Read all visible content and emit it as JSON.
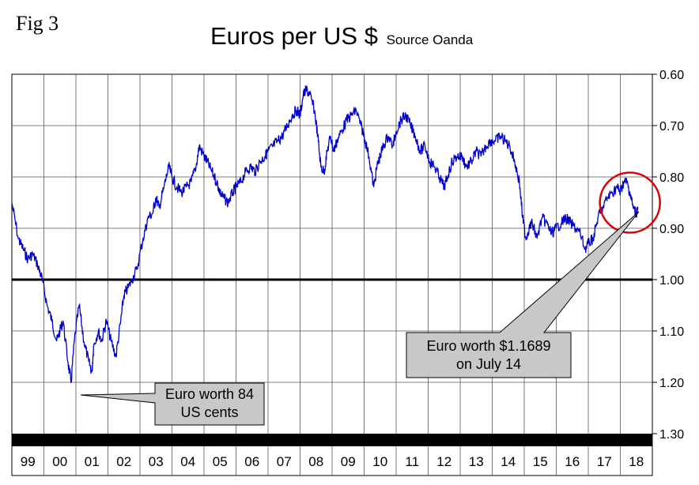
{
  "figure_label": "Fig 3",
  "title": "Euros per US $",
  "source": "Source Oanda",
  "chart_data": {
    "type": "line",
    "title": "Euros per US $",
    "subtitle": "Source Oanda",
    "xlabel": "",
    "ylabel": "",
    "x_categories": [
      "99",
      "00",
      "01",
      "02",
      "03",
      "04",
      "05",
      "06",
      "07",
      "08",
      "09",
      "10",
      "11",
      "12",
      "13",
      "14",
      "15",
      "16",
      "17",
      "18"
    ],
    "y_ticks": [
      "0.60",
      "0.70",
      "0.80",
      "0.90",
      "1.00",
      "1.10",
      "1.20",
      "1.30"
    ],
    "ylim": [
      0.6,
      1.3
    ],
    "y_inverted": true,
    "y_axis_side": "right",
    "reference_line": 1.0,
    "series": [
      {
        "name": "EUR per USD",
        "color": "#0000cc",
        "x": [
          1999.0,
          1999.2,
          1999.35,
          1999.5,
          1999.65,
          1999.8,
          1999.95,
          2000.1,
          2000.25,
          2000.4,
          2000.5,
          2000.6,
          2000.75,
          2000.85,
          2000.95,
          2001.1,
          2001.25,
          2001.4,
          2001.5,
          2001.55,
          2001.7,
          2001.8,
          2001.95,
          2002.1,
          2002.25,
          2002.4,
          2002.5,
          2002.6,
          2002.75,
          2002.9,
          2003.1,
          2003.25,
          2003.4,
          2003.5,
          2003.6,
          2003.75,
          2003.9,
          2004.0,
          2004.15,
          2004.3,
          2004.45,
          2004.6,
          2004.75,
          2004.85,
          2005.0,
          2005.1,
          2005.25,
          2005.4,
          2005.5,
          2005.6,
          2005.75,
          2005.9,
          2006.0,
          2006.15,
          2006.3,
          2006.45,
          2006.6,
          2006.75,
          2006.9,
          2007.0,
          2007.15,
          2007.3,
          2007.45,
          2007.6,
          2007.75,
          2007.9,
          2008.0,
          2008.1,
          2008.2,
          2008.3,
          2008.45,
          2008.55,
          2008.65,
          2008.75,
          2008.85,
          2008.95,
          2009.05,
          2009.15,
          2009.3,
          2009.45,
          2009.6,
          2009.75,
          2009.9,
          2010.0,
          2010.15,
          2010.3,
          2010.4,
          2010.5,
          2010.6,
          2010.75,
          2010.9,
          2011.0,
          2011.15,
          2011.3,
          2011.45,
          2011.6,
          2011.75,
          2011.9,
          2012.05,
          2012.2,
          2012.35,
          2012.5,
          2012.6,
          2012.75,
          2012.9,
          2013.05,
          2013.2,
          2013.35,
          2013.5,
          2013.65,
          2013.8,
          2013.95,
          2014.1,
          2014.25,
          2014.4,
          2014.55,
          2014.7,
          2014.85,
          2014.95,
          2015.05,
          2015.15,
          2015.25,
          2015.4,
          2015.55,
          2015.7,
          2015.85,
          2016.0,
          2016.15,
          2016.3,
          2016.45,
          2016.6,
          2016.75,
          2016.9,
          2017.0,
          2017.15,
          2017.3,
          2017.45,
          2017.6,
          2017.75,
          2017.9,
          2018.0,
          2018.1,
          2018.2,
          2018.3,
          2018.4,
          2018.5,
          2018.55
        ],
        "values": [
          0.85,
          0.92,
          0.94,
          0.96,
          0.95,
          0.97,
          1.0,
          1.05,
          1.08,
          1.12,
          1.1,
          1.08,
          1.16,
          1.2,
          1.12,
          1.05,
          1.12,
          1.16,
          1.18,
          1.13,
          1.1,
          1.12,
          1.08,
          1.12,
          1.15,
          1.08,
          1.03,
          1.02,
          1.0,
          0.98,
          0.92,
          0.88,
          0.87,
          0.84,
          0.86,
          0.82,
          0.78,
          0.8,
          0.82,
          0.83,
          0.82,
          0.81,
          0.78,
          0.74,
          0.76,
          0.77,
          0.79,
          0.81,
          0.83,
          0.84,
          0.85,
          0.83,
          0.82,
          0.81,
          0.79,
          0.78,
          0.79,
          0.77,
          0.76,
          0.75,
          0.74,
          0.73,
          0.72,
          0.7,
          0.68,
          0.67,
          0.68,
          0.64,
          0.63,
          0.64,
          0.67,
          0.72,
          0.78,
          0.79,
          0.75,
          0.72,
          0.75,
          0.73,
          0.71,
          0.69,
          0.68,
          0.67,
          0.7,
          0.72,
          0.76,
          0.82,
          0.78,
          0.76,
          0.74,
          0.72,
          0.74,
          0.71,
          0.69,
          0.68,
          0.7,
          0.72,
          0.75,
          0.74,
          0.77,
          0.78,
          0.8,
          0.82,
          0.8,
          0.77,
          0.76,
          0.76,
          0.78,
          0.77,
          0.75,
          0.76,
          0.74,
          0.73,
          0.73,
          0.72,
          0.73,
          0.74,
          0.77,
          0.81,
          0.88,
          0.92,
          0.9,
          0.89,
          0.92,
          0.88,
          0.89,
          0.91,
          0.9,
          0.89,
          0.88,
          0.89,
          0.9,
          0.91,
          0.94,
          0.93,
          0.92,
          0.88,
          0.86,
          0.84,
          0.83,
          0.82,
          0.83,
          0.81,
          0.81,
          0.83,
          0.86,
          0.87,
          0.86
        ]
      }
    ],
    "annotations": [
      {
        "text_lines": [
          "Euro worth 84",
          "US cents"
        ],
        "points_to_x": 2000.0,
        "points_to_y": 1.21
      },
      {
        "text_lines": [
          "Euro worth $1.1689",
          "on July 14"
        ],
        "points_to_x": 2018.5,
        "points_to_y": 0.86
      }
    ],
    "highlight": {
      "shape": "circle",
      "color": "#dd0000",
      "center_x": 2018.3,
      "center_y": 0.85
    }
  }
}
